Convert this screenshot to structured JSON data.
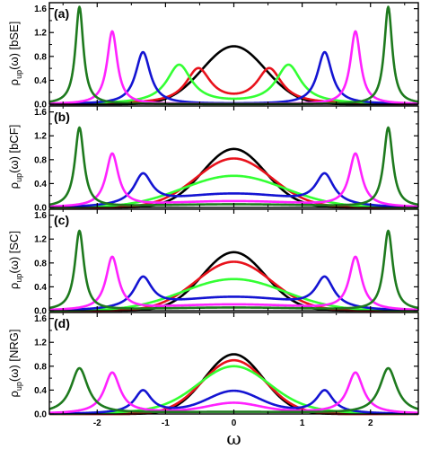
{
  "chart_data": {
    "type": "line",
    "xlabel": "ω",
    "xlim": [
      -2.7,
      2.7
    ],
    "x_ticks": [
      -2,
      -1,
      0,
      1,
      2
    ],
    "x_tick_labels": [
      "-2",
      "-1",
      "0",
      "1",
      "2"
    ],
    "ylim": [
      0,
      1.7
    ],
    "y_ticks": [
      0.0,
      0.4,
      0.8,
      1.2,
      1.6
    ],
    "y_tick_labels": [
      "0.0",
      "0.4",
      "0.8",
      "1.2",
      "1.6"
    ],
    "colors": {
      "black": "#000000",
      "red": "#e8121c",
      "lime": "#33ff33",
      "blue": "#1414d2",
      "magenta": "#ff22ff",
      "darkgreen": "#1e7a1e"
    },
    "panels": [
      {
        "label": "(a)",
        "ylabel_prefix": "ρ",
        "ylabel_sub": "up",
        "ylabel_suffix": "(ω) [bSE]",
        "curves": [
          {
            "color": "black",
            "parts": [
              {
                "type": "bump",
                "c": 0,
                "h": 0.97,
                "w": 0.65
              }
            ]
          },
          {
            "color": "red",
            "parts": [
              {
                "type": "pair",
                "c": 0.52,
                "h": 0.58,
                "w": 0.22
              }
            ]
          },
          {
            "color": "lime",
            "parts": [
              {
                "type": "pair",
                "c": 0.8,
                "h": 0.65,
                "w": 0.22
              }
            ]
          },
          {
            "color": "blue",
            "parts": [
              {
                "type": "pair",
                "c": 1.33,
                "h": 0.87,
                "w": 0.13
              }
            ]
          },
          {
            "color": "magenta",
            "parts": [
              {
                "type": "pair",
                "c": 1.78,
                "h": 1.22,
                "w": 0.09
              }
            ]
          },
          {
            "color": "darkgreen",
            "parts": [
              {
                "type": "pair",
                "c": 2.26,
                "h": 1.63,
                "w": 0.07
              }
            ]
          }
        ]
      },
      {
        "label": "(b)",
        "ylabel_prefix": "ρ",
        "ylabel_sub": "up",
        "ylabel_suffix": "(ω) [bCF]",
        "curves": [
          {
            "color": "black",
            "parts": [
              {
                "type": "bump",
                "c": 0,
                "h": 0.98,
                "w": 0.65
              }
            ]
          },
          {
            "color": "red",
            "parts": [
              {
                "type": "bump",
                "c": 0,
                "h": 0.82,
                "w": 0.78
              }
            ]
          },
          {
            "color": "lime",
            "parts": [
              {
                "type": "bump",
                "c": 0,
                "h": 0.53,
                "w": 1.05
              }
            ]
          },
          {
            "color": "blue",
            "parts": [
              {
                "type": "flat",
                "h": 0.22,
                "w": 1.25
              },
              {
                "type": "pair",
                "c": 1.33,
                "h": 0.5,
                "w": 0.16
              }
            ]
          },
          {
            "color": "magenta",
            "parts": [
              {
                "type": "flat",
                "h": 0.1,
                "w": 1.5
              },
              {
                "type": "pair",
                "c": 1.78,
                "h": 0.88,
                "w": 0.11
              }
            ]
          },
          {
            "color": "darkgreen",
            "parts": [
              {
                "type": "flat",
                "h": 0.05,
                "w": 1.7
              },
              {
                "type": "pair",
                "c": 2.26,
                "h": 1.33,
                "w": 0.08
              }
            ]
          }
        ]
      },
      {
        "label": "(c)",
        "ylabel_prefix": "ρ",
        "ylabel_sub": "up",
        "ylabel_suffix": "(ω) [SC]",
        "curves": [
          {
            "color": "black",
            "parts": [
              {
                "type": "bump",
                "c": 0,
                "h": 0.98,
                "w": 0.65
              }
            ]
          },
          {
            "color": "red",
            "parts": [
              {
                "type": "bump",
                "c": 0,
                "h": 0.82,
                "w": 0.78
              }
            ]
          },
          {
            "color": "lime",
            "parts": [
              {
                "type": "bump",
                "c": 0,
                "h": 0.53,
                "w": 1.05
              }
            ]
          },
          {
            "color": "blue",
            "parts": [
              {
                "type": "flat",
                "h": 0.22,
                "w": 1.25
              },
              {
                "type": "pair",
                "c": 1.33,
                "h": 0.5,
                "w": 0.16
              }
            ]
          },
          {
            "color": "magenta",
            "parts": [
              {
                "type": "flat",
                "h": 0.1,
                "w": 1.5
              },
              {
                "type": "pair",
                "c": 1.78,
                "h": 0.88,
                "w": 0.11
              }
            ]
          },
          {
            "color": "darkgreen",
            "parts": [
              {
                "type": "flat",
                "h": 0.05,
                "w": 1.7
              },
              {
                "type": "pair",
                "c": 2.26,
                "h": 1.33,
                "w": 0.08
              }
            ]
          }
        ]
      },
      {
        "label": "(d)",
        "ylabel_prefix": "ρ",
        "ylabel_sub": "up",
        "ylabel_suffix": "(ω) [NRG]",
        "curves": [
          {
            "color": "black",
            "parts": [
              {
                "type": "bump",
                "c": 0,
                "h": 1.0,
                "w": 0.6
              }
            ]
          },
          {
            "color": "red",
            "parts": [
              {
                "type": "bump",
                "c": 0,
                "h": 0.9,
                "w": 0.65
              }
            ]
          },
          {
            "color": "lime",
            "parts": [
              {
                "type": "bump",
                "c": 0,
                "h": 0.65,
                "w": 0.7
              },
              {
                "type": "flat",
                "h": 0.15,
                "w": 1.3
              }
            ]
          },
          {
            "color": "blue",
            "parts": [
              {
                "type": "bump",
                "c": 0,
                "h": 0.3,
                "w": 0.5
              },
              {
                "type": "flat",
                "h": 0.08,
                "w": 1.3
              },
              {
                "type": "pair",
                "c": 1.33,
                "h": 0.37,
                "w": 0.15
              }
            ]
          },
          {
            "color": "magenta",
            "parts": [
              {
                "type": "bump",
                "c": 0,
                "h": 0.13,
                "w": 0.5
              },
              {
                "type": "flat",
                "h": 0.05,
                "w": 1.6
              },
              {
                "type": "pair",
                "c": 1.78,
                "h": 0.68,
                "w": 0.14
              }
            ]
          },
          {
            "color": "darkgreen",
            "parts": [
              {
                "type": "flat",
                "h": 0.03,
                "w": 1.8
              },
              {
                "type": "pair",
                "c": 2.26,
                "h": 0.76,
                "w": 0.15
              }
            ]
          }
        ]
      }
    ]
  }
}
